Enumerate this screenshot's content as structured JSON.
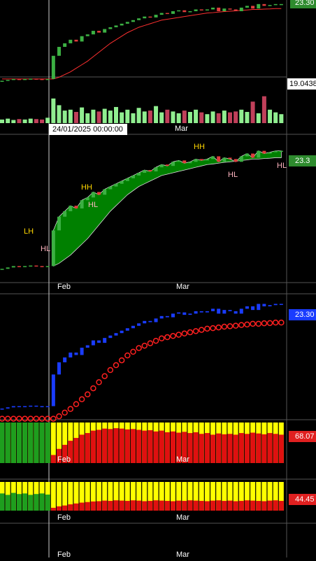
{
  "price_label_1": "23.30",
  "price_label_low": "19.0438",
  "cursor_date": "24/01/2025 00:00:00",
  "price_label_2": "23.3",
  "price_label_3": "23.30",
  "osc1_label": "68.07",
  "osc2_label": "44.45",
  "months": [
    "Feb",
    "Mar"
  ],
  "annotations": {
    "lh": "LH",
    "hh1": "HH",
    "hl1": "HL",
    "hh2": "HH",
    "hl2": "HL",
    "hl3": "HL",
    "hl0": "HL"
  },
  "closes": [
    19.0,
    19.05,
    19.1,
    19.08,
    19.1,
    19.12,
    19.1,
    19.08,
    19.1,
    20.4,
    20.9,
    21.1,
    21.3,
    21.2,
    21.5,
    21.6,
    21.8,
    21.7,
    21.9,
    22.0,
    22.1,
    22.2,
    22.3,
    22.4,
    22.5,
    22.6,
    22.55,
    22.7,
    22.8,
    22.75,
    22.9,
    22.95,
    22.85,
    22.9,
    23.0,
    22.95,
    23.0,
    23.1,
    22.9,
    23.05,
    23.0,
    22.9,
    23.1,
    23.2,
    23.05,
    23.3,
    23.2,
    23.25,
    23.3,
    23.3
  ],
  "ma": [
    19.1,
    19.1,
    19.1,
    19.1,
    19.1,
    19.1,
    19.1,
    19.1,
    19.1,
    19.1,
    19.2,
    19.35,
    19.5,
    19.7,
    19.9,
    20.1,
    20.35,
    20.6,
    20.85,
    21.1,
    21.3,
    21.5,
    21.7,
    21.85,
    22.0,
    22.1,
    22.2,
    22.3,
    22.4,
    22.45,
    22.5,
    22.55,
    22.6,
    22.65,
    22.7,
    22.75,
    22.8,
    22.82,
    22.85,
    22.88,
    22.9,
    22.92,
    22.95,
    22.97,
    23.0,
    23.0,
    23.02,
    23.03,
    23.05,
    23.05
  ],
  "volume": [
    8,
    10,
    7,
    9,
    8,
    10,
    9,
    8,
    12,
    55,
    40,
    28,
    30,
    25,
    35,
    22,
    30,
    26,
    32,
    28,
    36,
    24,
    30,
    22,
    34,
    26,
    28,
    38,
    24,
    30,
    26,
    22,
    28,
    25,
    30,
    24,
    20,
    26,
    22,
    28,
    24,
    26,
    30,
    25,
    48,
    22,
    60,
    30,
    24,
    20
  ],
  "p1_ylim": [
    18.9,
    23.45
  ],
  "p2_ylim": [
    18.6,
    23.8
  ],
  "p3_ylim": [
    18.6,
    23.6
  ],
  "vol_ylim": [
    0,
    100
  ],
  "osc_ylim": [
    0,
    100
  ],
  "osc1": {
    "green": [
      100,
      100,
      100,
      100,
      100,
      100,
      100,
      100,
      100,
      0,
      0,
      0,
      0,
      0,
      0,
      0,
      0,
      0,
      0,
      0,
      0,
      0,
      0,
      0,
      0,
      0,
      0,
      0,
      0,
      0,
      0,
      0,
      0,
      0,
      0,
      0,
      0,
      0,
      0,
      0,
      0,
      0,
      0,
      0,
      0,
      0,
      0,
      0,
      0,
      0
    ],
    "red": [
      0,
      0,
      0,
      0,
      0,
      0,
      0,
      0,
      0,
      20,
      35,
      45,
      55,
      62,
      70,
      74,
      80,
      82,
      85,
      84,
      86,
      85,
      83,
      84,
      82,
      80,
      81,
      78,
      80,
      76,
      78,
      75,
      77,
      74,
      76,
      72,
      74,
      70,
      73,
      71,
      72,
      70,
      74,
      72,
      75,
      73,
      71,
      74,
      72,
      70
    ]
  },
  "osc2": {
    "green": [
      60,
      55,
      62,
      58,
      60,
      55,
      58,
      60,
      56,
      0,
      0,
      0,
      0,
      0,
      0,
      0,
      0,
      0,
      0,
      0,
      0,
      0,
      0,
      0,
      0,
      0,
      0,
      0,
      0,
      0,
      0,
      0,
      0,
      0,
      0,
      0,
      0,
      0,
      0,
      0,
      0,
      0,
      0,
      0,
      0,
      0,
      0,
      0,
      0,
      0
    ],
    "red": [
      0,
      0,
      0,
      0,
      0,
      0,
      0,
      0,
      0,
      10,
      15,
      18,
      22,
      25,
      28,
      30,
      32,
      33,
      35,
      34,
      36,
      35,
      34,
      36,
      35,
      33,
      34,
      36,
      35,
      34,
      33,
      35,
      34,
      36,
      35,
      34,
      33,
      35,
      36,
      34,
      35,
      33,
      34,
      36,
      35,
      34,
      33,
      35,
      36,
      34
    ]
  }
}
